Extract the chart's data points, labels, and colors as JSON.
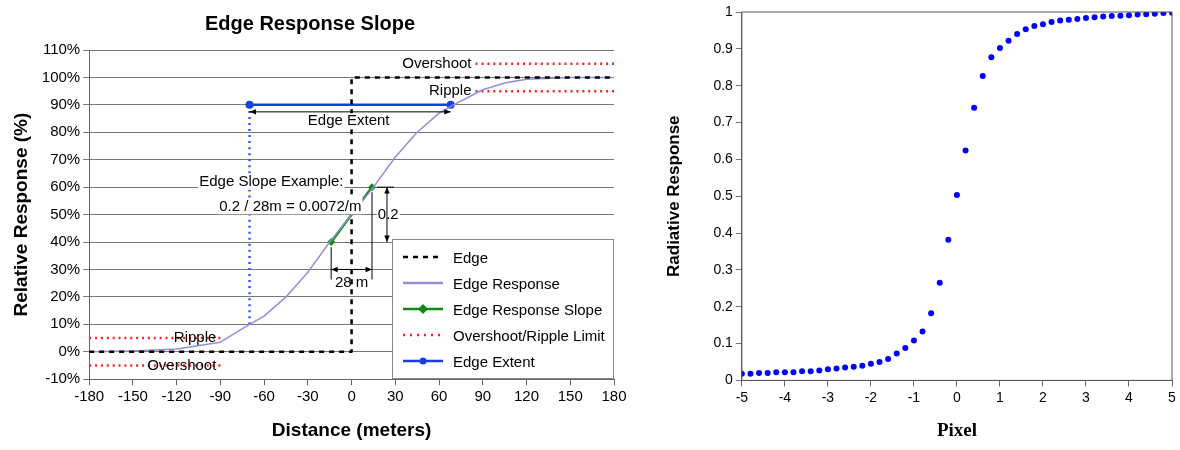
{
  "chart_data": [
    {
      "type": "line",
      "title": "Edge Response Slope",
      "xlabel": "Distance (meters)",
      "ylabel": "Relative Response (%)",
      "xlim": [
        -180,
        180
      ],
      "xticks": [
        -180,
        -150,
        -120,
        -90,
        -60,
        -30,
        0,
        30,
        60,
        90,
        120,
        150,
        180
      ],
      "ylim": [
        -10,
        110
      ],
      "yticks": [
        {
          "value": -10,
          "label": "-10%"
        },
        {
          "value": 0,
          "label": "0%"
        },
        {
          "value": 10,
          "label": "10%"
        },
        {
          "value": 20,
          "label": "20%"
        },
        {
          "value": 30,
          "label": "30%"
        },
        {
          "value": 40,
          "label": "40%"
        },
        {
          "value": 50,
          "label": "50%"
        },
        {
          "value": 60,
          "label": "60%"
        },
        {
          "value": 70,
          "label": "70%"
        },
        {
          "value": 80,
          "label": "80%"
        },
        {
          "value": 90,
          "label": "90%"
        },
        {
          "value": 100,
          "label": "100%"
        },
        {
          "value": 110,
          "label": "110%"
        }
      ],
      "grid": "y",
      "legend": "bottom right",
      "series": [
        {
          "name": "Edge",
          "color": "#000000",
          "line_style": "dashed",
          "marker": "none",
          "x": [
            -180,
            0,
            0,
            180
          ],
          "values": [
            0,
            0,
            100,
            100
          ]
        },
        {
          "name": "Edge Response",
          "color": "#9090d8",
          "line_style": "solid",
          "marker": "none",
          "x": [
            -180,
            -150,
            -120,
            -90,
            -70,
            -60,
            -45,
            -30,
            -15,
            0,
            15,
            30,
            45,
            60,
            70,
            90,
            105,
            120,
            150,
            180
          ],
          "values": [
            0,
            0.3,
            1,
            3.5,
            10,
            13,
            20,
            29,
            40,
            50,
            60,
            71,
            80,
            87,
            90,
            95.5,
            98,
            99.3,
            100,
            100
          ]
        },
        {
          "name": "Edge Response Slope",
          "color": "#118811",
          "line_style": "solid",
          "marker": "diamond",
          "x": [
            -14,
            14
          ],
          "values": [
            40,
            60
          ]
        },
        {
          "name": "Overshoot/Ripple Limit",
          "color": "#ff2020",
          "line_style": "dotted",
          "marker": "none",
          "x": [
            -180,
            -90
          ],
          "values": [
            5,
            5
          ]
        },
        {
          "color": "#ff2020",
          "line_style": "dotted",
          "marker": "none",
          "x": [
            -180,
            -90
          ],
          "values": [
            -5,
            -5
          ]
        },
        {
          "color": "#ff2020",
          "line_style": "dotted",
          "marker": "none",
          "x": [
            85,
            180
          ],
          "values": [
            105,
            105
          ]
        },
        {
          "color": "#ff2020",
          "line_style": "dotted",
          "marker": "none",
          "x": [
            85,
            180
          ],
          "values": [
            95,
            95
          ]
        },
        {
          "name": "Edge Extent",
          "color": "#1a3fe0",
          "line_style": "solid",
          "marker": "circle",
          "x": [
            -70,
            68
          ],
          "values": [
            90,
            90
          ]
        },
        {
          "color": "#3355ff",
          "line_style": "dotted",
          "marker": "none",
          "x": [
            -70,
            -70
          ],
          "values": [
            10,
            90
          ]
        }
      ],
      "annotations": [
        {
          "text": "Overshoot",
          "x": 85,
          "y": 105
        },
        {
          "text": "Ripple",
          "x": 85,
          "y": 95
        },
        "Edge Extent",
        "Edge Slope Example:",
        "0.2 / 28m = 0.0072/m",
        "0.2",
        {
          "text": "28 m",
          "x": 0,
          "y": 30
        },
        {
          "text": "Ripple",
          "x": -90,
          "y": 5
        },
        {
          "text": "Overshoot",
          "x": -90,
          "y": -5
        }
      ]
    },
    {
      "type": "scatter",
      "xlabel": "Pixel",
      "ylabel": "Radiative Response",
      "xlim": [
        -5,
        5
      ],
      "xticks": [
        -5,
        -4,
        -3,
        -2,
        -1,
        0,
        1,
        2,
        3,
        4,
        5
      ],
      "ylim": [
        0,
        1
      ],
      "yticks": [
        0,
        0.1,
        0.2,
        0.3,
        0.4,
        0.5,
        0.6,
        0.7,
        0.8,
        0.9,
        1
      ],
      "grid": false,
      "marker": "circle",
      "x": [
        -5,
        -4.8,
        -4.6,
        -4.4,
        -4.2,
        -4,
        -3.8,
        -3.6,
        -3.4,
        -3.2,
        -3,
        -2.8,
        -2.6,
        -2.4,
        -2.2,
        -2,
        -1.8,
        -1.6,
        -1.4,
        -1.2,
        -1,
        -0.8,
        -0.6,
        -0.4,
        -0.2,
        0,
        0.2,
        0.4,
        0.6,
        0.8,
        1,
        1.2,
        1.4,
        1.6,
        1.8,
        2,
        2.2,
        2.4,
        2.6,
        2.8,
        3,
        3.2,
        3.4,
        3.6,
        3.8,
        4,
        4.2,
        4.4,
        4.6,
        4.8,
        5
      ],
      "series": [
        {
          "color": "#0000ff",
          "values": [
            0.018,
            0.018,
            0.02,
            0.02,
            0.022,
            0.022,
            0.022,
            0.025,
            0.025,
            0.027,
            0.03,
            0.032,
            0.035,
            0.037,
            0.04,
            0.045,
            0.05,
            0.058,
            0.073,
            0.088,
            0.108,
            0.133,
            0.182,
            0.265,
            0.382,
            0.503,
            0.624,
            0.74,
            0.826,
            0.877,
            0.902,
            0.922,
            0.94,
            0.953,
            0.962,
            0.967,
            0.973,
            0.977,
            0.979,
            0.981,
            0.984,
            0.986,
            0.988,
            0.989,
            0.99,
            0.991,
            0.993,
            0.994,
            0.995,
            0.997,
            0.998
          ]
        }
      ]
    }
  ]
}
